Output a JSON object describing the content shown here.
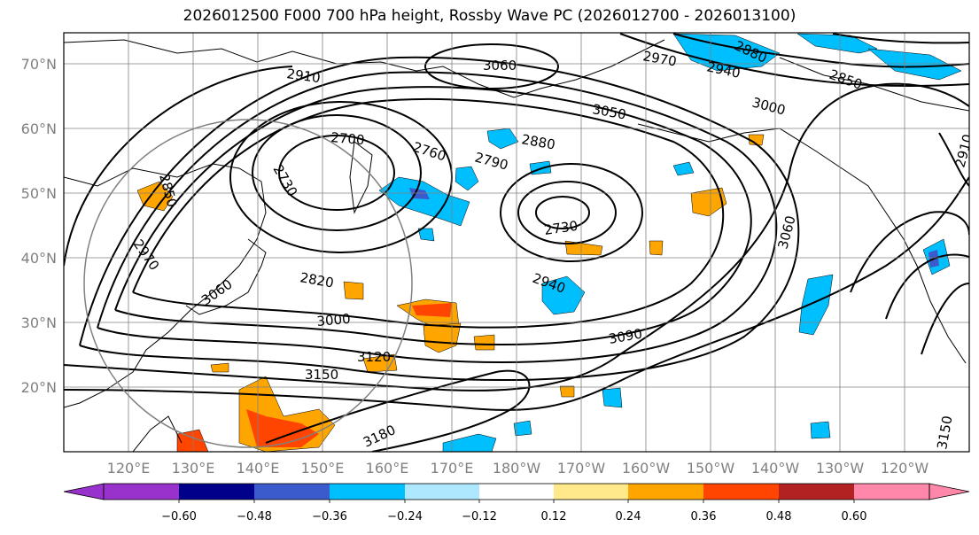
{
  "title": "2026012500 F000 700 hPa height, Rossby Wave PC (2026012700 - 2026013100)",
  "map": {
    "lat_labels": [
      "70°N",
      "60°N",
      "50°N",
      "40°N",
      "30°N",
      "20°N"
    ],
    "lon_labels": [
      "120°E",
      "130°E",
      "140°E",
      "150°E",
      "160°E",
      "170°E",
      "180°W",
      "170°W",
      "160°W",
      "150°W",
      "140°W",
      "130°W",
      "120°W"
    ],
    "contour_labels": [
      "3060",
      "2970",
      "2940",
      "2880",
      "2910",
      "2700",
      "2760",
      "2790",
      "2880",
      "3050",
      "3000",
      "2910",
      "2850",
      "2730",
      "2730",
      "3060",
      "2820",
      "2940",
      "3000",
      "3090",
      "3120",
      "3150",
      "3180",
      "3150",
      "2850",
      "2970",
      "3060"
    ],
    "colors": {
      "contour": "#000000",
      "grid": "#808080",
      "coast": "#000000",
      "neg_light": "#ade8ff",
      "neg_mid": "#00bfff",
      "neg_dark": "#3b5bcc",
      "pos_light": "#ffe98a",
      "pos_mid": "#ffa500",
      "pos_dark": "#ff4500"
    }
  },
  "colorbar": {
    "ticks": [
      "−0.60",
      "−0.48",
      "−0.36",
      "−0.24",
      "−0.12",
      "0.12",
      "0.24",
      "0.36",
      "0.48",
      "0.60"
    ],
    "colors": [
      "#9932cc",
      "#00008b",
      "#3b5bcc",
      "#00bfff",
      "#ade8ff",
      "#ffffff",
      "#ffe98a",
      "#ffa500",
      "#ff4500",
      "#b22222",
      "#ff88aa"
    ]
  }
}
